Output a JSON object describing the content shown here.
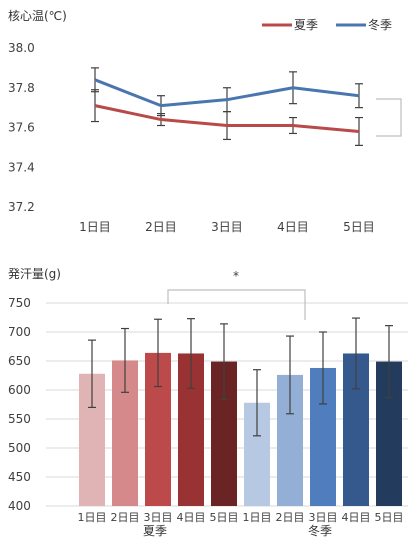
{
  "chart_data": [
    {
      "type": "line",
      "title": "核心温(℃)",
      "categories": [
        "1日目",
        "2日目",
        "3日目",
        "4日目",
        "5日目"
      ],
      "ylim": [
        37.2,
        38.0
      ],
      "yticks": [
        "38.0",
        "37.8",
        "37.6",
        "37.4",
        "37.2"
      ],
      "grid": false,
      "legend_position": "top-right",
      "series": [
        {
          "name": "夏季",
          "color": "#b84a4a",
          "values": [
            37.71,
            37.64,
            37.61,
            37.61,
            37.58
          ],
          "errors": [
            0.08,
            0.03,
            0.07,
            0.04,
            0.07
          ]
        },
        {
          "name": "冬季",
          "color": "#4a76b0",
          "values": [
            37.84,
            37.71,
            37.74,
            37.8,
            37.76
          ],
          "errors": [
            0.06,
            0.05,
            0.06,
            0.08,
            0.06
          ]
        }
      ]
    },
    {
      "type": "bar",
      "title": "発汗量(g)",
      "categories": [
        "1日目",
        "2日目",
        "3日目",
        "4日目",
        "5日目",
        "1日目",
        "2日目",
        "3日目",
        "4日目",
        "5日目"
      ],
      "groups": [
        "夏季",
        "冬季"
      ],
      "ylim": [
        400,
        750
      ],
      "yticks": [
        "750",
        "700",
        "650",
        "600",
        "550",
        "500",
        "450",
        "400"
      ],
      "grid": true,
      "values": [
        628,
        651,
        664,
        663,
        649,
        578,
        626,
        638,
        663,
        649
      ],
      "errors": [
        58,
        55,
        58,
        60,
        65,
        57,
        67,
        62,
        61,
        62
      ],
      "colors": [
        "#e0b3b5",
        "#d6898b",
        "#bd4a4a",
        "#993333",
        "#6b2424",
        "#b7c9e2",
        "#93afd6",
        "#4f7dbd",
        "#35598c",
        "#233b5c"
      ],
      "significance_label": "*"
    }
  ]
}
